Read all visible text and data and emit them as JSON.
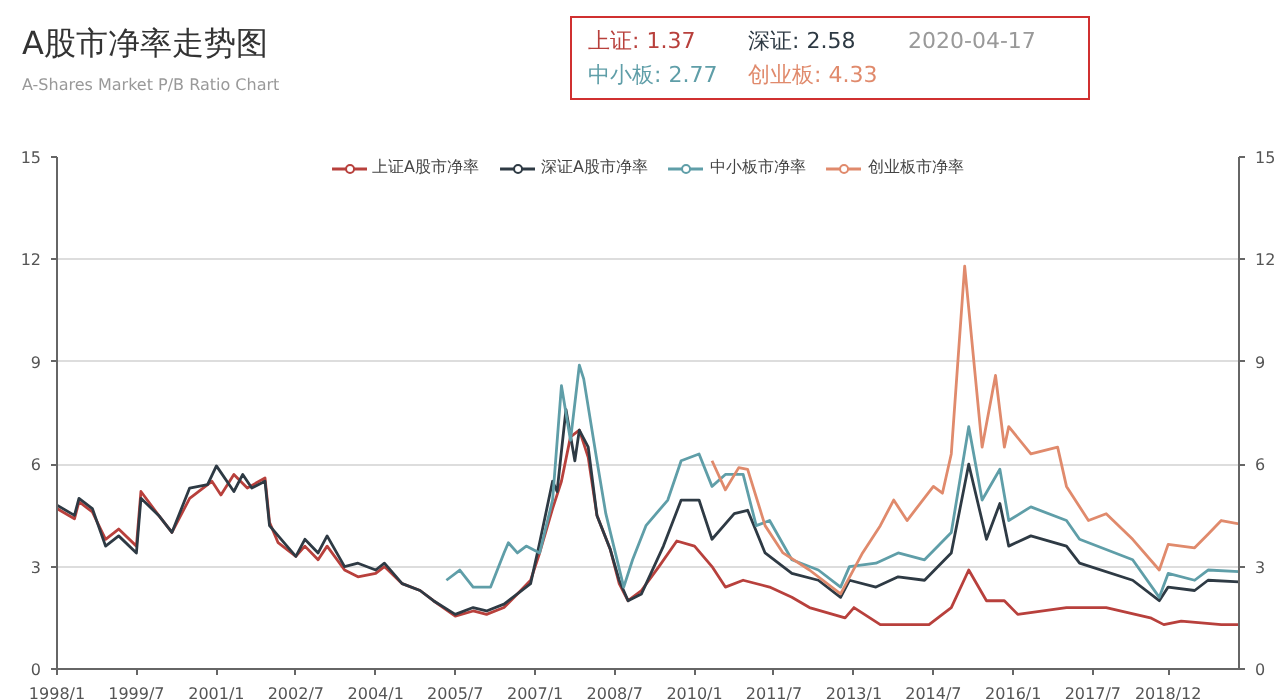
{
  "chart_data": {
    "type": "line",
    "title": "A股市净率走势图",
    "subtitle": "A-Shares Market P/B Ratio Chart",
    "annotations": [
      "上证: 1.37",
      "深证: 2.58",
      "中小板: 2.77",
      "创业板: 4.33",
      "2020-04-17"
    ],
    "xlim": [
      "1998-01",
      "2020-04"
    ],
    "xticks": [
      {
        "value": "1998-01",
        "label": "1998/1"
      },
      {
        "value": "1999-07",
        "label": "1999/7"
      },
      {
        "value": "2001-01",
        "label": "2001/1"
      },
      {
        "value": "2002-07",
        "label": "2002/7"
      },
      {
        "value": "2004-01",
        "label": "2004/1"
      },
      {
        "value": "2005-07",
        "label": "2005/7"
      },
      {
        "value": "2007-01",
        "label": "2007/1"
      },
      {
        "value": "2008-07",
        "label": "2008/7"
      },
      {
        "value": "2010-01",
        "label": "2010/1"
      },
      {
        "value": "2011-07",
        "label": "2011/7"
      },
      {
        "value": "2013-01",
        "label": "2013/1"
      },
      {
        "value": "2014-07",
        "label": "2014/7"
      },
      {
        "value": "2016-01",
        "label": "2016/1"
      },
      {
        "value": "2017-07",
        "label": "2017/7"
      },
      {
        "value": "2018-12",
        "label": "2018/12"
      }
    ],
    "ylim": [
      0,
      15
    ],
    "yticks": [
      0,
      3,
      6,
      9,
      12,
      15
    ],
    "y2lim": [
      0,
      15
    ],
    "y2ticks": [
      0,
      3,
      6,
      9,
      12,
      15
    ],
    "grid": "y",
    "legend": "top",
    "marker": "none",
    "line_style": "solid",
    "series": [
      {
        "name": "上证A股市净率",
        "color": "#b8403c",
        "x": [
          "1998-01",
          "1998-05",
          "1998-06",
          "1998-09",
          "1998-12",
          "1999-03",
          "1999-07",
          "1999-08",
          "1999-12",
          "2000-03",
          "2000-07",
          "2000-12",
          "2001-02",
          "2001-05",
          "2001-08",
          "2001-12",
          "2002-01",
          "2002-03",
          "2002-07",
          "2002-09",
          "2002-12",
          "2003-02",
          "2003-06",
          "2003-09",
          "2004-01",
          "2004-03",
          "2004-07",
          "2004-11",
          "2005-02",
          "2005-07",
          "2005-11",
          "2006-02",
          "2006-06",
          "2006-09",
          "2006-12",
          "2007-02",
          "2007-05",
          "2007-07",
          "2007-09",
          "2007-11",
          "2008-01",
          "2008-03",
          "2008-06",
          "2008-08",
          "2008-10",
          "2009-01",
          "2009-05",
          "2009-09",
          "2010-01",
          "2010-05",
          "2010-08",
          "2010-12",
          "2011-06",
          "2011-11",
          "2012-03",
          "2012-11",
          "2013-01",
          "2013-07",
          "2014-06",
          "2014-11",
          "2015-03",
          "2015-07",
          "2015-11",
          "2016-02",
          "2017-01",
          "2017-10",
          "2018-08",
          "2018-11",
          "2019-03",
          "2019-12",
          "2020-04"
        ],
        "values": [
          4.7,
          4.4,
          4.9,
          4.6,
          3.8,
          4.1,
          3.6,
          5.2,
          4.5,
          4.0,
          5.0,
          5.5,
          5.1,
          5.7,
          5.3,
          5.6,
          4.3,
          3.7,
          3.3,
          3.6,
          3.2,
          3.6,
          2.9,
          2.7,
          2.8,
          3.0,
          2.5,
          2.3,
          2.0,
          1.55,
          1.7,
          1.6,
          1.8,
          2.2,
          2.6,
          3.4,
          4.7,
          5.5,
          6.8,
          7.0,
          6.2,
          4.5,
          3.5,
          2.5,
          2.0,
          2.3,
          3.0,
          3.75,
          3.6,
          3.0,
          2.4,
          2.6,
          2.4,
          2.1,
          1.8,
          1.5,
          1.8,
          1.3,
          1.3,
          1.8,
          2.9,
          2.0,
          2.0,
          1.6,
          1.8,
          1.8,
          1.5,
          1.3,
          1.4,
          1.3,
          1.3
        ]
      },
      {
        "name": "深证A股市净率",
        "color": "#2e3a44",
        "x": [
          "1998-01",
          "1998-05",
          "1998-06",
          "1998-09",
          "1998-12",
          "1999-03",
          "1999-07",
          "1999-08",
          "1999-12",
          "2000-03",
          "2000-07",
          "2000-11",
          "2001-01",
          "2001-05",
          "2001-07",
          "2001-09",
          "2001-12",
          "2002-01",
          "2002-05",
          "2002-07",
          "2002-09",
          "2002-12",
          "2003-02",
          "2003-06",
          "2003-09",
          "2004-01",
          "2004-03",
          "2004-07",
          "2004-11",
          "2005-02",
          "2005-07",
          "2005-11",
          "2006-02",
          "2006-06",
          "2006-09",
          "2006-12",
          "2007-02",
          "2007-05",
          "2007-06",
          "2007-08",
          "2007-10",
          "2007-11",
          "2008-01",
          "2008-03",
          "2008-06",
          "2008-08",
          "2008-10",
          "2009-01",
          "2009-06",
          "2009-10",
          "2010-02",
          "2010-05",
          "2010-10",
          "2011-01",
          "2011-05",
          "2011-11",
          "2012-05",
          "2012-10",
          "2012-12",
          "2013-06",
          "2013-11",
          "2014-05",
          "2014-11",
          "2015-03",
          "2015-07",
          "2015-10",
          "2015-12",
          "2016-05",
          "2017-01",
          "2017-04",
          "2018-04",
          "2018-10",
          "2018-12",
          "2019-06",
          "2019-09",
          "2020-04"
        ],
        "values": [
          4.8,
          4.5,
          5.0,
          4.7,
          3.6,
          3.9,
          3.4,
          5.0,
          4.5,
          4.0,
          5.3,
          5.4,
          5.95,
          5.2,
          5.7,
          5.3,
          5.5,
          4.2,
          3.6,
          3.3,
          3.8,
          3.4,
          3.9,
          3.0,
          3.1,
          2.9,
          3.1,
          2.5,
          2.3,
          2.0,
          1.6,
          1.8,
          1.7,
          1.9,
          2.2,
          2.5,
          3.7,
          5.5,
          5.2,
          7.6,
          6.1,
          7.0,
          6.5,
          4.5,
          3.5,
          2.6,
          2.0,
          2.2,
          3.6,
          4.95,
          4.95,
          3.8,
          4.55,
          4.65,
          3.4,
          2.8,
          2.6,
          2.1,
          2.6,
          2.4,
          2.7,
          2.6,
          3.4,
          6.0,
          3.8,
          4.85,
          3.6,
          3.9,
          3.6,
          3.1,
          2.6,
          2.0,
          2.4,
          2.3,
          2.6,
          2.55
        ]
      },
      {
        "name": "中小板市净率",
        "color": "#5f9ea8",
        "x": [
          "2005-05",
          "2005-08",
          "2005-11",
          "2006-03",
          "2006-06",
          "2006-07",
          "2006-09",
          "2006-11",
          "2007-02",
          "2007-05",
          "2007-07",
          "2007-09",
          "2007-11",
          "2007-12",
          "2008-03",
          "2008-05",
          "2008-09",
          "2008-11",
          "2009-02",
          "2009-07",
          "2009-10",
          "2010-02",
          "2010-05",
          "2010-08",
          "2010-12",
          "2011-03",
          "2011-06",
          "2011-11",
          "2012-05",
          "2012-10",
          "2012-12",
          "2013-06",
          "2013-11",
          "2014-05",
          "2014-11",
          "2015-03",
          "2015-06",
          "2015-10",
          "2015-12",
          "2016-05",
          "2017-01",
          "2017-04",
          "2018-04",
          "2018-10",
          "2018-12",
          "2019-06",
          "2019-09",
          "2020-04"
        ],
        "values": [
          2.6,
          2.9,
          2.4,
          2.4,
          3.4,
          3.7,
          3.4,
          3.6,
          3.4,
          4.95,
          8.3,
          6.7,
          8.9,
          8.5,
          6.1,
          4.55,
          2.4,
          3.2,
          4.2,
          4.95,
          6.1,
          6.3,
          5.35,
          5.7,
          5.7,
          4.2,
          4.35,
          3.2,
          2.9,
          2.4,
          3.0,
          3.1,
          3.4,
          3.2,
          4.0,
          7.1,
          4.95,
          5.85,
          4.35,
          4.75,
          4.35,
          3.8,
          3.2,
          2.1,
          2.8,
          2.6,
          2.9,
          2.85
        ]
      },
      {
        "name": "创业板市净率",
        "color": "#e08a6c",
        "x": [
          "2010-05",
          "2010-08",
          "2010-11",
          "2011-01",
          "2011-05",
          "2011-09",
          "2012-03",
          "2012-10",
          "2013-03",
          "2013-07",
          "2013-10",
          "2014-01",
          "2014-07",
          "2014-09",
          "2014-11",
          "2015-02",
          "2015-06",
          "2015-09",
          "2015-11",
          "2015-12",
          "2016-05",
          "2016-11",
          "2017-01",
          "2017-06",
          "2017-10",
          "2018-04",
          "2018-10",
          "2018-12",
          "2019-06",
          "2019-09",
          "2019-12",
          "2020-04"
        ],
        "values": [
          6.1,
          5.25,
          5.9,
          5.85,
          4.2,
          3.4,
          2.9,
          2.2,
          3.4,
          4.2,
          4.95,
          4.35,
          5.35,
          5.15,
          6.3,
          11.8,
          6.5,
          8.6,
          6.5,
          7.1,
          6.3,
          6.5,
          5.35,
          4.35,
          4.55,
          3.8,
          2.9,
          3.65,
          3.55,
          3.95,
          4.35,
          4.25
        ]
      }
    ]
  }
}
